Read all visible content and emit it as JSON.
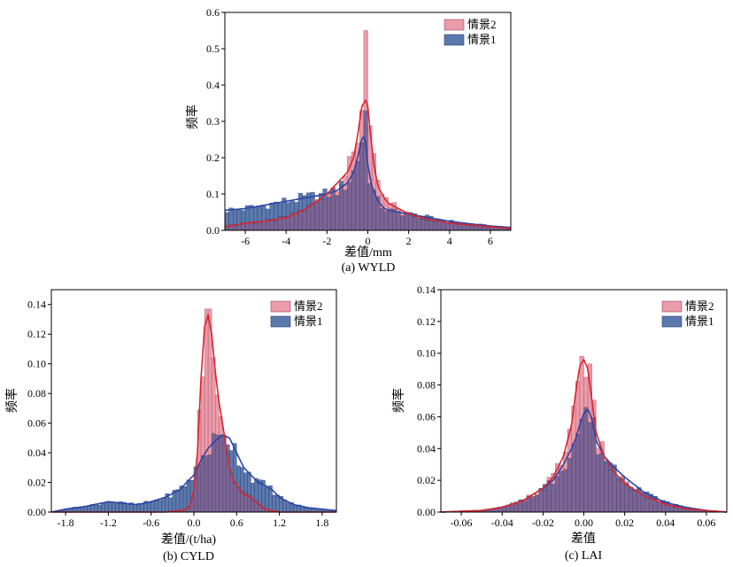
{
  "figure": {
    "series_names": [
      "情景2",
      "情景1"
    ],
    "colors": {
      "scenario2_bar": "#e8899b",
      "scenario2_line": "#d9252d",
      "scenario1_bar": "#3f62a0",
      "scenario1_line": "#2b45a6",
      "overlap": "#7b6595"
    }
  },
  "chart_data": [
    {
      "id": "wyld",
      "type": "histogram",
      "caption": "(a) WYLD",
      "xlabel": "差值/mm",
      "ylabel": "频率",
      "xlim": [
        -7,
        7
      ],
      "ylim": [
        0,
        0.6
      ],
      "xticks": [
        -6,
        -4,
        -2,
        0,
        2,
        4,
        6
      ],
      "yticks": [
        0.0,
        0.1,
        0.2,
        0.3,
        0.4,
        0.5,
        0.6
      ],
      "ytick_labels": [
        "0.0",
        "0.1",
        "0.2",
        "0.3",
        "0.4",
        "0.5",
        "0.6"
      ],
      "bin_width": 0.2,
      "legend": [
        "情景2",
        "情景1"
      ],
      "series": [
        {
          "name": "情景2",
          "curve_x": [
            -7,
            -6,
            -5,
            -4,
            -3,
            -2,
            -1.5,
            -1,
            -0.7,
            -0.5,
            -0.3,
            -0.1,
            0,
            0.1,
            0.3,
            0.5,
            0.8,
            1,
            1.5,
            2,
            3,
            4,
            5,
            6,
            7
          ],
          "curve_y": [
            0.01,
            0.02,
            0.025,
            0.035,
            0.06,
            0.1,
            0.13,
            0.16,
            0.2,
            0.26,
            0.34,
            0.36,
            0.34,
            0.28,
            0.18,
            0.12,
            0.09,
            0.075,
            0.06,
            0.045,
            0.03,
            0.02,
            0.015,
            0.01,
            0.005
          ],
          "peak_bins": [
            {
              "x": -0.1,
              "value": 0.55
            }
          ]
        },
        {
          "name": "情景1",
          "curve_x": [
            -7,
            -6,
            -5,
            -4,
            -3,
            -2,
            -1.5,
            -1,
            -0.7,
            -0.5,
            -0.3,
            -0.2,
            -0.1,
            0,
            0.2,
            0.5,
            0.8,
            1,
            1.5,
            2,
            3,
            4,
            5,
            6,
            7
          ],
          "curve_y": [
            0.055,
            0.06,
            0.07,
            0.08,
            0.09,
            0.1,
            0.11,
            0.13,
            0.16,
            0.2,
            0.25,
            0.26,
            0.24,
            0.18,
            0.12,
            0.08,
            0.06,
            0.055,
            0.05,
            0.045,
            0.035,
            0.025,
            0.018,
            0.012,
            0.008
          ],
          "peak_bins": [
            {
              "x": -0.1,
              "value": 0.33
            }
          ]
        }
      ]
    },
    {
      "id": "cyld",
      "type": "histogram",
      "caption": "(b) CYLD",
      "xlabel": "差值/(t/ha)",
      "ylabel": "频率",
      "xlim": [
        -2.0,
        2.0
      ],
      "ylim": [
        0,
        0.15
      ],
      "xticks": [
        -1.8,
        -1.2,
        -0.6,
        0.0,
        0.6,
        1.2,
        1.8
      ],
      "xtick_labels": [
        "-1.8",
        "-1.2",
        "-0.6",
        "0.0",
        "0.6",
        "1.2",
        "1.8"
      ],
      "yticks": [
        0.0,
        0.02,
        0.04,
        0.06,
        0.08,
        0.1,
        0.12,
        0.14
      ],
      "ytick_labels": [
        "0.00",
        "0.02",
        "0.04",
        "0.06",
        "0.08",
        "0.10",
        "0.12",
        "0.14"
      ],
      "bin_width": 0.05,
      "legend": [
        "情景2",
        "情景1"
      ],
      "series": [
        {
          "name": "情景2",
          "curve_x": [
            -2.0,
            -0.4,
            -0.2,
            -0.1,
            -0.05,
            0.0,
            0.05,
            0.1,
            0.15,
            0.2,
            0.25,
            0.3,
            0.35,
            0.4,
            0.45,
            0.5,
            0.55,
            0.6,
            0.65,
            0.7,
            0.8,
            0.9,
            1.0,
            1.2,
            2.0
          ],
          "curve_y": [
            0.0,
            0.0,
            0.001,
            0.002,
            0.005,
            0.015,
            0.04,
            0.09,
            0.125,
            0.133,
            0.12,
            0.095,
            0.075,
            0.06,
            0.045,
            0.03,
            0.022,
            0.018,
            0.015,
            0.012,
            0.01,
            0.006,
            0.002,
            0.0,
            0.0
          ],
          "peak_bins": [
            {
              "x": 0.2,
              "value": 0.137
            }
          ]
        },
        {
          "name": "情景1",
          "curve_x": [
            -2.0,
            -1.8,
            -1.5,
            -1.2,
            -1.0,
            -0.8,
            -0.6,
            -0.4,
            -0.2,
            0.0,
            0.1,
            0.2,
            0.3,
            0.4,
            0.5,
            0.6,
            0.7,
            0.8,
            0.9,
            1.0,
            1.1,
            1.2,
            1.4,
            1.6,
            1.8,
            2.0
          ],
          "curve_y": [
            0.0,
            0.002,
            0.004,
            0.007,
            0.006,
            0.005,
            0.007,
            0.01,
            0.015,
            0.025,
            0.035,
            0.043,
            0.048,
            0.052,
            0.05,
            0.04,
            0.03,
            0.025,
            0.02,
            0.018,
            0.015,
            0.01,
            0.005,
            0.003,
            0.002,
            0.001
          ],
          "peak_bins": [
            {
              "x": 0.4,
              "value": 0.052
            }
          ]
        }
      ]
    },
    {
      "id": "lai",
      "type": "histogram",
      "caption": "(c) LAI",
      "xlabel": "差值",
      "ylabel": "频率",
      "xlim": [
        -0.07,
        0.07
      ],
      "ylim": [
        0,
        0.14
      ],
      "xticks": [
        -0.06,
        -0.04,
        -0.02,
        0.0,
        0.02,
        0.04,
        0.06
      ],
      "xtick_labels": [
        "-0.06",
        "-0.04",
        "-0.02",
        "0.00",
        "0.02",
        "0.04",
        "0.06"
      ],
      "yticks": [
        0.0,
        0.02,
        0.04,
        0.06,
        0.08,
        0.1,
        0.12,
        0.14
      ],
      "ytick_labels": [
        "0.00",
        "0.02",
        "0.04",
        "0.06",
        "0.08",
        "0.10",
        "0.12",
        "0.14"
      ],
      "bin_width": 0.002,
      "legend": [
        "情景2",
        "情景1"
      ],
      "series": [
        {
          "name": "情景2",
          "curve_x": [
            -0.07,
            -0.05,
            -0.04,
            -0.03,
            -0.02,
            -0.015,
            -0.01,
            -0.006,
            -0.004,
            -0.002,
            0.0,
            0.002,
            0.004,
            0.006,
            0.01,
            0.015,
            0.02,
            0.03,
            0.04,
            0.05,
            0.06,
            0.07
          ],
          "curve_y": [
            0.0,
            0.001,
            0.003,
            0.007,
            0.015,
            0.022,
            0.035,
            0.055,
            0.075,
            0.092,
            0.096,
            0.09,
            0.07,
            0.05,
            0.035,
            0.025,
            0.018,
            0.01,
            0.005,
            0.002,
            0.001,
            0.0
          ],
          "peak_bins": [
            {
              "x": -0.001,
              "value": 0.098
            }
          ]
        },
        {
          "name": "情景1",
          "curve_x": [
            -0.07,
            -0.05,
            -0.04,
            -0.03,
            -0.02,
            -0.015,
            -0.01,
            -0.006,
            -0.004,
            -0.002,
            0.0,
            0.002,
            0.004,
            0.006,
            0.01,
            0.015,
            0.02,
            0.03,
            0.04,
            0.05,
            0.06,
            0.07
          ],
          "curve_y": [
            0.0,
            0.001,
            0.003,
            0.007,
            0.015,
            0.02,
            0.03,
            0.04,
            0.046,
            0.055,
            0.062,
            0.065,
            0.058,
            0.045,
            0.035,
            0.028,
            0.022,
            0.012,
            0.006,
            0.003,
            0.001,
            0.0
          ],
          "peak_bins": [
            {
              "x": 0.001,
              "value": 0.066
            }
          ]
        }
      ]
    }
  ]
}
